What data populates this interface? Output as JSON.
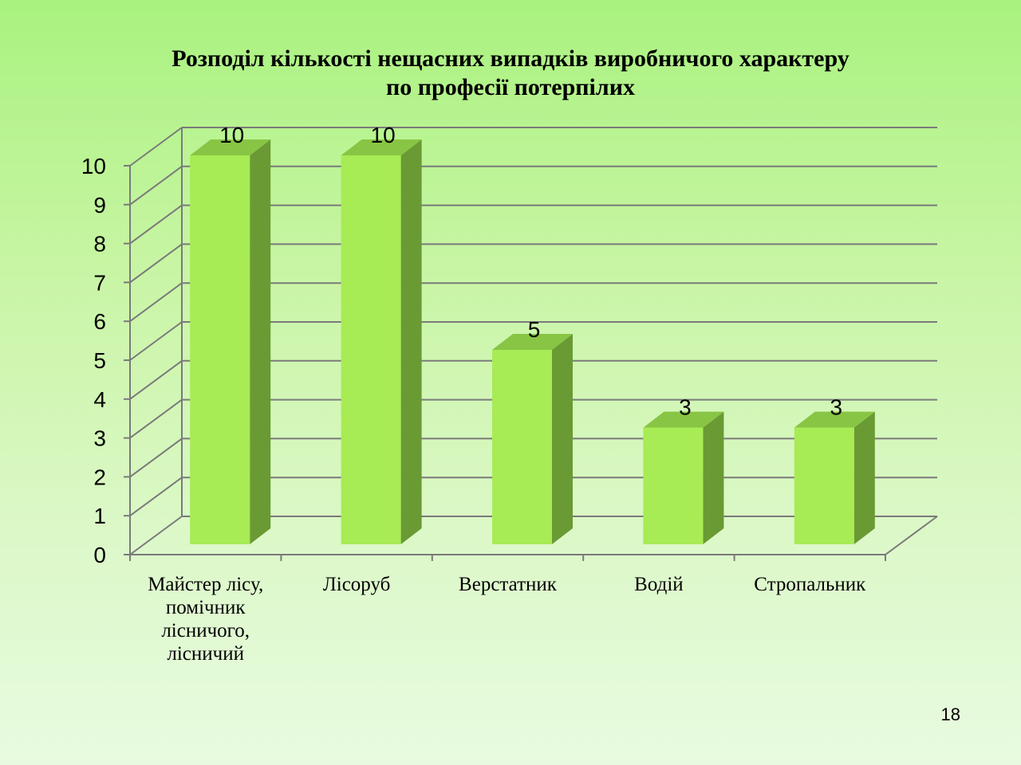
{
  "page_number": "18",
  "chart_data": {
    "type": "bar",
    "title_lines": [
      "Розподіл кількості нещасних випадків виробничого характеру",
      "по професії потерпілих"
    ],
    "categories": [
      [
        "Майстер лісу,",
        "помічник",
        "лісничого,",
        "лісничий"
      ],
      [
        "Лісоруб"
      ],
      [
        "Верстатник"
      ],
      [
        "Водій"
      ],
      [
        "Стропальник"
      ]
    ],
    "values": [
      10,
      10,
      5,
      3,
      3
    ],
    "data_labels": [
      "10",
      "10",
      "5",
      "3",
      "3"
    ],
    "y_ticks": [
      "0",
      "1",
      "2",
      "3",
      "4",
      "5",
      "6",
      "7",
      "8",
      "9",
      "10"
    ],
    "ylim": [
      0,
      10
    ],
    "grid": true,
    "legend": false,
    "style_3d": true,
    "colors": {
      "bar_front": "#a7eb55",
      "bar_side": "#6a9a34",
      "bar_top": "#88c544",
      "grid": "#7a7a7a"
    }
  }
}
